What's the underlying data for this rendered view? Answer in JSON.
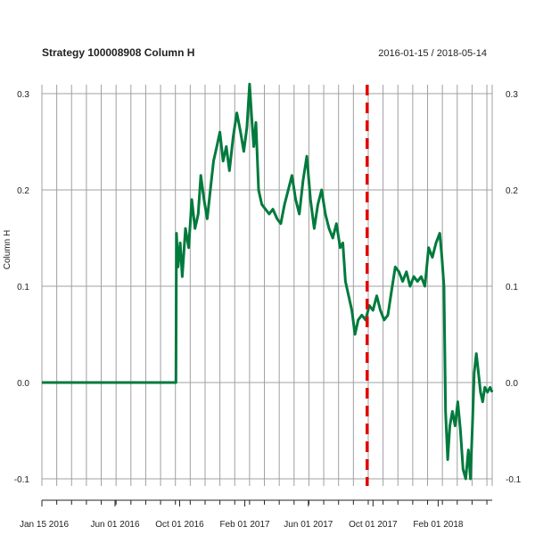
{
  "chart_data": {
    "type": "line",
    "title": "Strategy 100008908 Column H",
    "subtitle": "2016-01-15 / 2018-05-14",
    "xlabel": "",
    "ylabel": "Column H",
    "x_range": [
      "2016-01-15",
      "2018-05-14"
    ],
    "ylim": [
      -0.1,
      0.3
    ],
    "y_ticks": [
      "-0.1",
      "0.0",
      "0.1",
      "0.2",
      "0.3"
    ],
    "x_tick_labels": [
      {
        "date": "2016-01-15",
        "label": "Jan 15 2016"
      },
      {
        "date": "2016-06-01",
        "label": "Jun 01 2016"
      },
      {
        "date": "2016-10-01",
        "label": "Oct 01 2016"
      },
      {
        "date": "2017-02-01",
        "label": "Feb 01 2017"
      },
      {
        "date": "2017-06-01",
        "label": "Jun 01 2017"
      },
      {
        "date": "2017-10-01",
        "label": "Oct 01 2017"
      },
      {
        "date": "2018-02-01",
        "label": "Feb 01 2018"
      }
    ],
    "grid": true,
    "vertical_marker": {
      "date": "2017-09-20",
      "color": "#e00000",
      "style": "dashed"
    },
    "series": [
      {
        "color": "#007a3d",
        "points": [
          [
            "2016-01-15",
            0.0
          ],
          [
            "2016-03-01",
            0.0
          ],
          [
            "2016-05-01",
            0.0
          ],
          [
            "2016-07-01",
            0.0
          ],
          [
            "2016-09-01",
            0.0
          ],
          [
            "2016-09-24",
            0.0
          ],
          [
            "2016-09-25",
            0.155
          ],
          [
            "2016-09-28",
            0.12
          ],
          [
            "2016-10-02",
            0.145
          ],
          [
            "2016-10-06",
            0.11
          ],
          [
            "2016-10-12",
            0.16
          ],
          [
            "2016-10-18",
            0.14
          ],
          [
            "2016-10-24",
            0.19
          ],
          [
            "2016-10-30",
            0.16
          ],
          [
            "2016-11-05",
            0.175
          ],
          [
            "2016-11-10",
            0.215
          ],
          [
            "2016-11-16",
            0.19
          ],
          [
            "2016-11-22",
            0.17
          ],
          [
            "2016-11-28",
            0.2
          ],
          [
            "2016-12-04",
            0.23
          ],
          [
            "2016-12-10",
            0.245
          ],
          [
            "2016-12-16",
            0.26
          ],
          [
            "2016-12-22",
            0.23
          ],
          [
            "2016-12-28",
            0.245
          ],
          [
            "2017-01-03",
            0.22
          ],
          [
            "2017-01-10",
            0.255
          ],
          [
            "2017-01-17",
            0.28
          ],
          [
            "2017-01-24",
            0.26
          ],
          [
            "2017-01-30",
            0.24
          ],
          [
            "2017-02-05",
            0.265
          ],
          [
            "2017-02-10",
            0.31
          ],
          [
            "2017-02-14",
            0.275
          ],
          [
            "2017-02-18",
            0.245
          ],
          [
            "2017-02-22",
            0.27
          ],
          [
            "2017-02-27",
            0.2
          ],
          [
            "2017-03-05",
            0.185
          ],
          [
            "2017-03-12",
            0.18
          ],
          [
            "2017-03-19",
            0.175
          ],
          [
            "2017-03-26",
            0.18
          ],
          [
            "2017-04-03",
            0.17
          ],
          [
            "2017-04-10",
            0.165
          ],
          [
            "2017-04-17",
            0.185
          ],
          [
            "2017-04-24",
            0.2
          ],
          [
            "2017-05-01",
            0.215
          ],
          [
            "2017-05-08",
            0.19
          ],
          [
            "2017-05-15",
            0.175
          ],
          [
            "2017-05-22",
            0.21
          ],
          [
            "2017-05-29",
            0.235
          ],
          [
            "2017-06-05",
            0.19
          ],
          [
            "2017-06-12",
            0.16
          ],
          [
            "2017-06-19",
            0.185
          ],
          [
            "2017-06-26",
            0.2
          ],
          [
            "2017-07-03",
            0.175
          ],
          [
            "2017-07-10",
            0.16
          ],
          [
            "2017-07-17",
            0.15
          ],
          [
            "2017-07-24",
            0.165
          ],
          [
            "2017-07-31",
            0.14
          ],
          [
            "2017-08-05",
            0.145
          ],
          [
            "2017-08-10",
            0.105
          ],
          [
            "2017-08-16",
            0.09
          ],
          [
            "2017-08-22",
            0.075
          ],
          [
            "2017-08-28",
            0.05
          ],
          [
            "2017-09-03",
            0.065
          ],
          [
            "2017-09-10",
            0.07
          ],
          [
            "2017-09-17",
            0.065
          ],
          [
            "2017-09-24",
            0.08
          ],
          [
            "2017-10-01",
            0.075
          ],
          [
            "2017-10-08",
            0.09
          ],
          [
            "2017-10-15",
            0.075
          ],
          [
            "2017-10-22",
            0.065
          ],
          [
            "2017-10-29",
            0.07
          ],
          [
            "2017-11-05",
            0.095
          ],
          [
            "2017-11-12",
            0.12
          ],
          [
            "2017-11-19",
            0.115
          ],
          [
            "2017-11-26",
            0.105
          ],
          [
            "2017-12-03",
            0.115
          ],
          [
            "2017-12-10",
            0.1
          ],
          [
            "2017-12-17",
            0.11
          ],
          [
            "2017-12-24",
            0.105
          ],
          [
            "2017-12-31",
            0.11
          ],
          [
            "2018-01-07",
            0.1
          ],
          [
            "2018-01-14",
            0.14
          ],
          [
            "2018-01-21",
            0.13
          ],
          [
            "2018-01-28",
            0.145
          ],
          [
            "2018-02-04",
            0.155
          ],
          [
            "2018-02-08",
            0.13
          ],
          [
            "2018-02-12",
            0.1
          ],
          [
            "2018-02-15",
            -0.03
          ],
          [
            "2018-02-19",
            -0.08
          ],
          [
            "2018-02-23",
            -0.045
          ],
          [
            "2018-02-28",
            -0.03
          ],
          [
            "2018-03-05",
            -0.045
          ],
          [
            "2018-03-10",
            -0.02
          ],
          [
            "2018-03-15",
            -0.05
          ],
          [
            "2018-03-20",
            -0.09
          ],
          [
            "2018-03-25",
            -0.1
          ],
          [
            "2018-03-30",
            -0.07
          ],
          [
            "2018-04-03",
            -0.1
          ],
          [
            "2018-04-07",
            -0.04
          ],
          [
            "2018-04-10",
            0.01
          ],
          [
            "2018-04-14",
            0.03
          ],
          [
            "2018-04-18",
            0.01
          ],
          [
            "2018-04-22",
            -0.01
          ],
          [
            "2018-04-26",
            -0.02
          ],
          [
            "2018-04-30",
            -0.005
          ],
          [
            "2018-05-05",
            -0.01
          ],
          [
            "2018-05-10",
            -0.005
          ],
          [
            "2018-05-14",
            -0.01
          ]
        ]
      }
    ]
  }
}
